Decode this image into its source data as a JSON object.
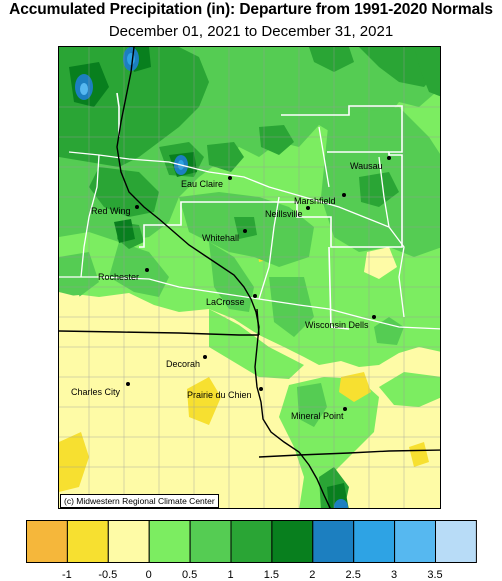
{
  "header": {
    "title": "Accumulated Precipitation (in): Departure from 1991-2020 Normals",
    "subtitle": "December 01, 2021 to December 31, 2021"
  },
  "credit": "(c) Midwestern Regional Climate Center",
  "legend": {
    "colors": [
      "#f5b73b",
      "#f7e030",
      "#fefba6",
      "#7ced61",
      "#55cc53",
      "#2aa535",
      "#087f1e",
      "#1c7fc0",
      "#2ea3e4",
      "#56b8f0",
      "#b8dcf7"
    ],
    "labels": [
      "-1",
      "-0.5",
      "0",
      "0.5",
      "1",
      "1.5",
      "2",
      "2.5",
      "3",
      "3.5"
    ]
  },
  "cities": [
    {
      "name": "Wausau"
    },
    {
      "name": "Eau Claire"
    },
    {
      "name": "Marshfield"
    },
    {
      "name": "Red Wing"
    },
    {
      "name": "Neillsville"
    },
    {
      "name": "Whitehall"
    },
    {
      "name": "Rochester"
    },
    {
      "name": "LaCrosse"
    },
    {
      "name": "Wisconsin Dells"
    },
    {
      "name": "Decorah"
    },
    {
      "name": "Charles City"
    },
    {
      "name": "Prairie du Chien"
    },
    {
      "name": "Mineral Point"
    }
  ]
}
